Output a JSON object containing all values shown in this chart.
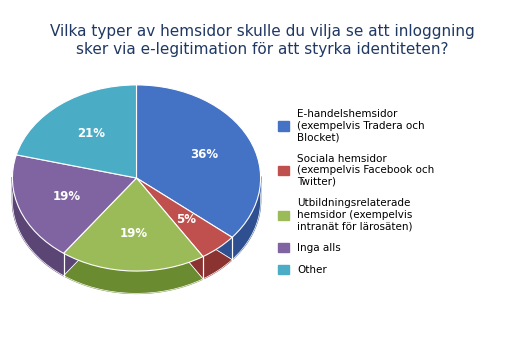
{
  "title": "Vilka typer av hemsidor skulle du vilja se att inloggning\nsker via e-legitimation för att styrka identiteten?",
  "slices": [
    36,
    5,
    19,
    19,
    21
  ],
  "colors": [
    "#4472C4",
    "#C0504D",
    "#9BBB59",
    "#8064A2",
    "#4BACC6"
  ],
  "dark_colors": [
    "#2E5090",
    "#8B3330",
    "#6B8B30",
    "#5A4575",
    "#2E7A92"
  ],
  "labels": [
    "36%",
    "5%",
    "19%",
    "19%",
    "21%"
  ],
  "legend_labels": [
    "E-handelshemsidor\n(exempelvis Tradera och\nBlocket)",
    "Sociala hemsidor\n(exempelvis Facebook och\nTwitter)",
    "Utbildningsrelaterade\nhemsidor (exempelvis\nintranät för lärosäten)",
    "Inga alls",
    "Other"
  ],
  "title_fontsize": 11,
  "label_fontsize": 8.5,
  "legend_fontsize": 7.5,
  "title_color": "#1F3864"
}
